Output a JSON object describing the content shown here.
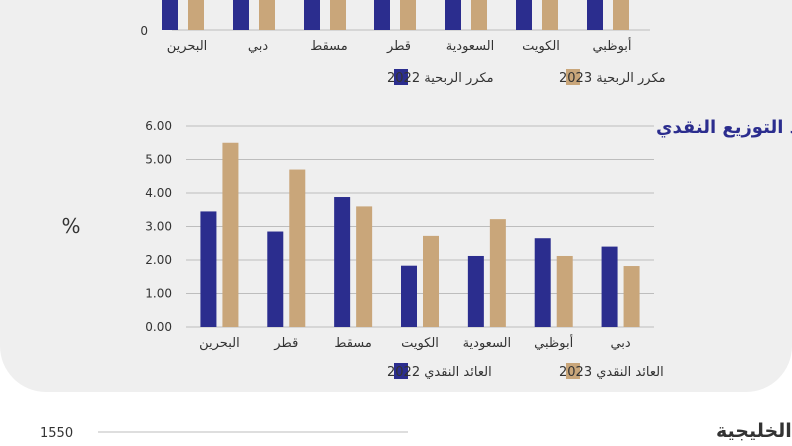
{
  "colors": {
    "series_2022": "#2b2d8e",
    "series_2023": "#c9a67a",
    "title_color": "#2b2d8e",
    "axis_text": "#333333",
    "grid": "#bdbdbd"
  },
  "chart_data": [
    {
      "type": "bar",
      "title": "",
      "categories": [
        "أبوظبي",
        "الكويت",
        "السعودية",
        "قطر",
        "مسقط",
        "دبي",
        "البحرين"
      ],
      "y_tick_labels": [
        "0"
      ],
      "legend": {
        "position": "bottom"
      },
      "series": [
        {
          "name": "مكرر الربحية 2022",
          "color_key": "series_2022"
        },
        {
          "name": "مكرر الربحية 2023",
          "color_key": "series_2023"
        }
      ]
    },
    {
      "type": "bar",
      "title": "عائد التوزيع النقدي",
      "ylabel": "%",
      "ylim": [
        0,
        6
      ],
      "yticks": [
        "0.00",
        "1.00",
        "2.00",
        "3.00",
        "4.00",
        "5.00",
        "6.00"
      ],
      "grid": true,
      "legend": {
        "position": "bottom"
      },
      "categories": [
        "دبي",
        "أبوظبي",
        "السعودية",
        "الكويت",
        "مسقط",
        "قطر",
        "البحرين"
      ],
      "series": [
        {
          "name": "العائد النقدي 2022",
          "color_key": "series_2022",
          "values": [
            2.4,
            2.65,
            2.12,
            1.83,
            3.88,
            2.85,
            3.45
          ]
        },
        {
          "name": "العائد النقدي 2023",
          "color_key": "series_2023",
          "values": [
            1.82,
            2.12,
            3.22,
            2.72,
            3.6,
            4.7,
            5.5
          ]
        }
      ]
    },
    {
      "type": "line",
      "title": "مؤشر MSCI للأسواق الخليجية",
      "yticks": [
        "1550"
      ]
    }
  ]
}
